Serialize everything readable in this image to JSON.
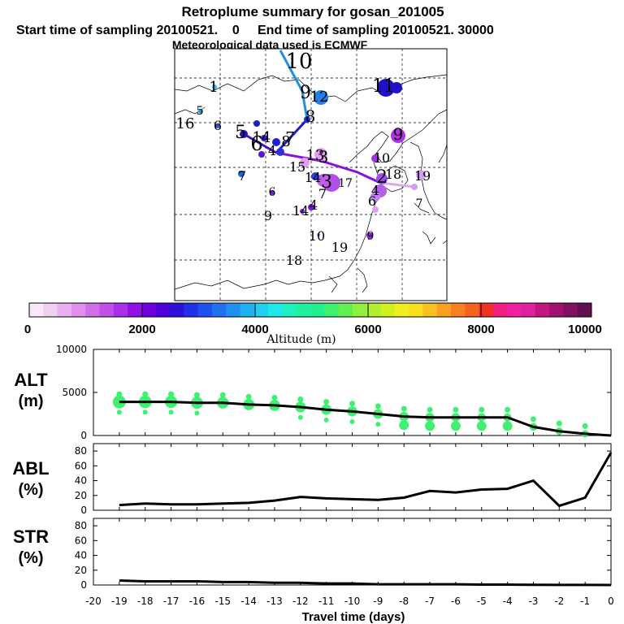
{
  "header": {
    "title": "Retroplume summary for gosan_201005",
    "subtitle": "Start time of sampling 20100521.    0     End time of sampling 20100521. 30000",
    "met_line": "Meteorological data used is ECMWF"
  },
  "colorbar": {
    "tick_labels": [
      "0",
      "2000",
      "4000",
      "6000",
      "8000",
      "10000"
    ],
    "label": "Altitude (m)"
  },
  "chart_data": [
    {
      "name": "retroplume-map",
      "type": "scatter",
      "day_labels": [
        "1",
        "2",
        "3",
        "4",
        "5",
        "6",
        "7",
        "8",
        "9",
        "10",
        "11",
        "12",
        "13",
        "14",
        "15",
        "16",
        "17",
        "18",
        "19"
      ],
      "path_days": [
        0,
        -1,
        -2,
        -3,
        -4,
        -5,
        -6,
        -7,
        -8,
        -9,
        -10
      ]
    },
    {
      "name": "alt-panel",
      "type": "line",
      "ylabel_line1": "ALT",
      "ylabel_line2": "(m)",
      "ylim": [
        0,
        10000
      ],
      "ytick_labels": [
        "10000",
        "5000",
        "0"
      ],
      "x": [
        -19,
        -18,
        -17,
        -16,
        -15,
        -14,
        -13,
        -12,
        -11,
        -10,
        -9,
        -8,
        -7,
        -6,
        -5,
        -4,
        -3,
        -2,
        -1,
        0
      ],
      "values": [
        3900,
        3900,
        3900,
        3800,
        3800,
        3600,
        3500,
        3300,
        3000,
        2800,
        2500,
        2200,
        2100,
        2100,
        2100,
        2100,
        1000,
        500,
        200,
        0
      ]
    },
    {
      "name": "abl-panel",
      "type": "line",
      "ylabel_line1": "ABL",
      "ylabel_line2": "(%)",
      "ylim": [
        0,
        90
      ],
      "ytick_labels": [
        "80",
        "60",
        "40",
        "20",
        "0"
      ],
      "x": [
        -19,
        -18,
        -17,
        -16,
        -15,
        -14,
        -13,
        -12,
        -11,
        -10,
        -9,
        -8,
        -7,
        -6,
        -5,
        -4,
        -3,
        -2,
        -1,
        0
      ],
      "values": [
        7,
        9,
        8,
        8,
        9,
        10,
        13,
        18,
        16,
        15,
        14,
        17,
        26,
        24,
        28,
        29,
        40,
        6,
        17,
        78
      ]
    },
    {
      "name": "str-panel",
      "type": "line",
      "ylabel_line1": "STR",
      "ylabel_line2": "(%)",
      "ylim": [
        0,
        90
      ],
      "ytick_labels": [
        "80",
        "60",
        "40",
        "20",
        "0"
      ],
      "x": [
        -19,
        -18,
        -17,
        -16,
        -15,
        -14,
        -13,
        -12,
        -11,
        -10,
        -9,
        -8,
        -7,
        -6,
        -5,
        -4,
        -3,
        -2,
        -1,
        0
      ],
      "values": [
        6,
        5,
        5,
        5,
        4,
        4,
        3,
        3,
        2,
        2,
        1,
        1,
        1,
        1,
        0.5,
        0.5,
        0.3,
        0.2,
        0.1,
        0
      ]
    }
  ],
  "xaxis": {
    "tick_labels": [
      "-20",
      "-19",
      "-18",
      "-17",
      "-16",
      "-15",
      "-14",
      "-13",
      "-12",
      "-11",
      "-10",
      "-9",
      "-8",
      "-7",
      "-6",
      "-5",
      "-4",
      "-3",
      "-2",
      "-1",
      "0"
    ],
    "label": "Travel time (days)"
  }
}
